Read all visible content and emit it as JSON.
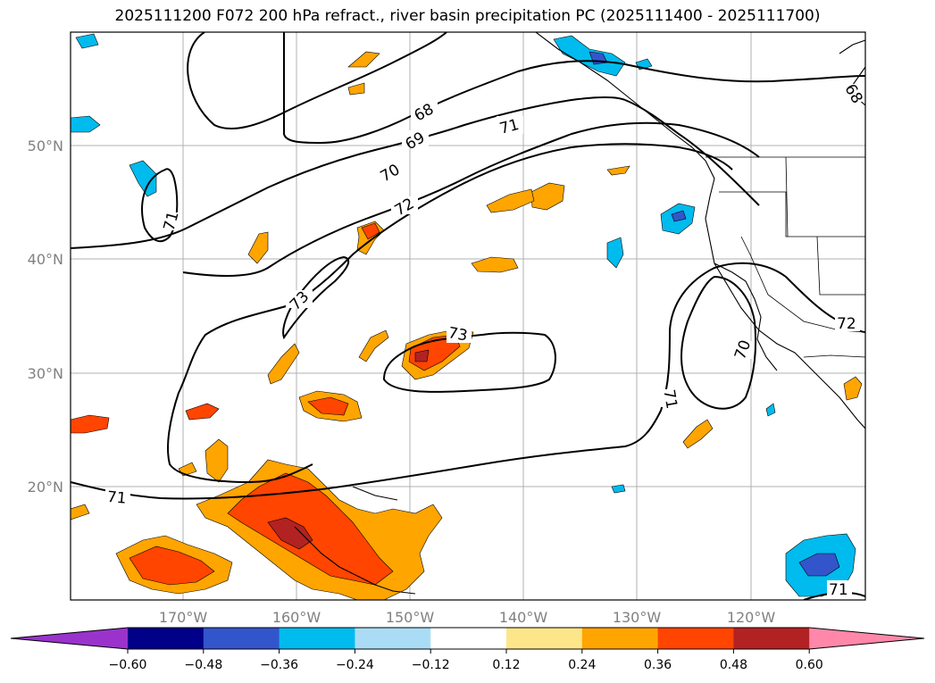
{
  "title": "2025111200 F072 200 hPa refract., river basin precipitation PC (2025111400 - 2025111700)",
  "lat_labels": [
    "50°N",
    "40°N",
    "30°N",
    "20°N"
  ],
  "lon_labels": [
    "170°W",
    "160°W",
    "150°W",
    "140°W",
    "130°W",
    "120°W"
  ],
  "contour_labels": [
    "68",
    "69",
    "70",
    "71",
    "72",
    "73",
    "71",
    "70",
    "71",
    "72",
    "73",
    "68",
    "71",
    "71"
  ],
  "colorbar": {
    "ticks": [
      "−0.60",
      "−0.48",
      "−0.36",
      "−0.24",
      "−0.12",
      "0.12",
      "0.24",
      "0.36",
      "0.48",
      "0.60"
    ],
    "colors": [
      "#9933cc",
      "#000088",
      "#3355cc",
      "#00bbee",
      "#aaddf5",
      "#ffffff",
      "#fde68a",
      "#ffa500",
      "#ff4500",
      "#b22222",
      "#ff88aa"
    ]
  },
  "colors": {
    "orange": "#ffa500",
    "red_orange": "#ff4500",
    "dark_red": "#b22222",
    "cyan": "#00bbee",
    "blue": "#3355cc",
    "grid": "#b0b0b0"
  }
}
